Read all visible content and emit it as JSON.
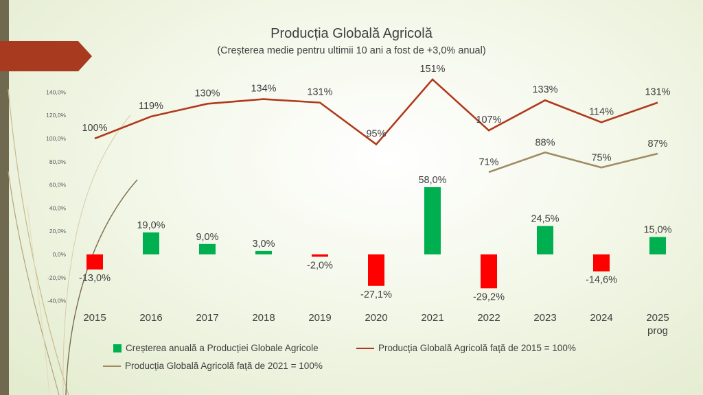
{
  "chart_data": {
    "type": "bar+line",
    "title": "Producția Globală Agricolă",
    "subtitle": "(Creșterea medie pentru ultimii 10 ani a fost de +3,0% anual)",
    "categories": [
      "2015",
      "2016",
      "2017",
      "2018",
      "2019",
      "2020",
      "2021",
      "2022",
      "2023",
      "2024",
      "2025 prog"
    ],
    "category_lines": [
      [
        "2015"
      ],
      [
        "2016"
      ],
      [
        "2017"
      ],
      [
        "2018"
      ],
      [
        "2019"
      ],
      [
        "2020"
      ],
      [
        "2021"
      ],
      [
        "2022"
      ],
      [
        "2023"
      ],
      [
        "2024"
      ],
      [
        "2025",
        "prog"
      ]
    ],
    "ylim": [
      -40,
      160
    ],
    "yticks": [
      -40,
      -20,
      0,
      20,
      40,
      60,
      80,
      100,
      120,
      140
    ],
    "ytick_labels": [
      "-40,0%",
      "-20,0%",
      "0,0%",
      "20,0%",
      "40,0%",
      "60,0%",
      "80,0%",
      "100,0%",
      "120,0%",
      "140,0%"
    ],
    "grid": false,
    "legend_position": "bottom",
    "series": [
      {
        "name": "Creșterea anuală a Producției Globale Agricole",
        "kind": "bar",
        "values": [
          -13.0,
          19.0,
          9.0,
          3.0,
          -2.0,
          -27.1,
          58.0,
          -29.2,
          24.5,
          -14.6,
          15.0
        ],
        "labels": [
          "-13,0%",
          "19,0%",
          "9,0%",
          "3,0%",
          "-2,0%",
          "-27,1%",
          "58,0%",
          "-29,2%",
          "24,5%",
          "-14,6%",
          "15,0%"
        ],
        "positive_color": "#00b050",
        "negative_color": "#ff0000"
      },
      {
        "name": "Producția Globală Agricolă față de 2015 = 100%",
        "kind": "line",
        "color": "#b03a1e",
        "values": [
          100,
          119,
          130,
          134,
          131,
          95,
          151,
          107,
          133,
          114,
          131
        ],
        "labels": [
          "100%",
          "119%",
          "130%",
          "134%",
          "131%",
          "95%",
          "151%",
          "107%",
          "133%",
          "114%",
          "131%"
        ]
      },
      {
        "name": "Producția Globală Agricolă față de 2021 = 100%",
        "kind": "line",
        "color": "#a08c64",
        "values": [
          null,
          null,
          null,
          null,
          null,
          null,
          null,
          71,
          88,
          75,
          87
        ],
        "labels": [
          null,
          null,
          null,
          null,
          null,
          null,
          null,
          "71%",
          "88%",
          "75%",
          "87%"
        ]
      }
    ]
  },
  "colors": {
    "left_bar": "#6f6a4f",
    "arrow_tab": "#a83a20",
    "text": "#404040"
  },
  "legend": {
    "bar": "Creșterea anuală a Producției Globale Agricole",
    "line2015": "Producția Globală Agricolă față de 2015 = 100%",
    "line2021": "Producția Globală Agricolă față de 2021 = 100%"
  }
}
